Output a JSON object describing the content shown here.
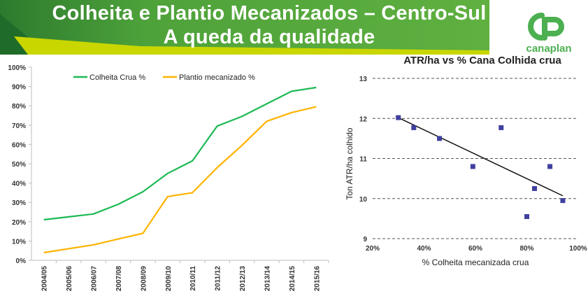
{
  "banner": {
    "title_line1": "Colheita e Plantio Mecanizados – Centro-Sul",
    "title_line2": "A queda da qualidade",
    "colors": {
      "dark_green": "#2e7d32",
      "green": "#5aab3c",
      "yellow": "#c8d400"
    }
  },
  "logo": {
    "text": "canaplan",
    "icon": "canaplan-cp-logo-icon",
    "color": "#4caf50"
  },
  "chart_data": [
    {
      "type": "line",
      "categories": [
        "2004/05",
        "2005/06",
        "2006/07",
        "2007/08",
        "2008/09",
        "2009/10",
        "2010/11",
        "2011/12",
        "2012/13",
        "2013/14",
        "2014/15",
        "2015/16"
      ],
      "series": [
        {
          "name": "Colheita Crua %",
          "color": "#1db954",
          "values": [
            21,
            22.5,
            24,
            29,
            35.5,
            45,
            51.5,
            69.5,
            74.5,
            81,
            87.5,
            89.5
          ]
        },
        {
          "name": "Plantio mecanizado %",
          "color": "#ffb300",
          "values": [
            4,
            6,
            8,
            11,
            14,
            33,
            35,
            48,
            59.5,
            72,
            76.5,
            79.5
          ]
        }
      ],
      "ylim": [
        0,
        100
      ],
      "yticks": [
        "0%",
        "10%",
        "20%",
        "30%",
        "40%",
        "50%",
        "60%",
        "70%",
        "80%",
        "90%",
        "100%"
      ],
      "title": "",
      "xlabel": "",
      "ylabel": "",
      "legend": "top"
    },
    {
      "type": "scatter",
      "title": "ATR/ha vs % Cana Colhida crua",
      "xlabel": "% Colheita mecanizada crua",
      "ylabel": "Ton ATR/ha colhido",
      "xlim": [
        20,
        100
      ],
      "ylim": [
        9,
        13
      ],
      "xticks": [
        "20%",
        "40%",
        "60%",
        "80%",
        "100%"
      ],
      "yticks": [
        "9",
        "10",
        "11",
        "12",
        "13"
      ],
      "point_color": "#4040a0",
      "points": [
        {
          "x": 30,
          "y": 12.02
        },
        {
          "x": 36,
          "y": 11.77
        },
        {
          "x": 46,
          "y": 11.5
        },
        {
          "x": 59,
          "y": 10.8
        },
        {
          "x": 70,
          "y": 11.77
        },
        {
          "x": 80,
          "y": 9.55
        },
        {
          "x": 83,
          "y": 10.25
        },
        {
          "x": 89,
          "y": 10.8
        },
        {
          "x": 94,
          "y": 9.95
        }
      ],
      "trendline": {
        "x": [
          29,
          94
        ],
        "y": [
          12.05,
          10.07
        ]
      },
      "grid": "horizontal dashed"
    }
  ]
}
